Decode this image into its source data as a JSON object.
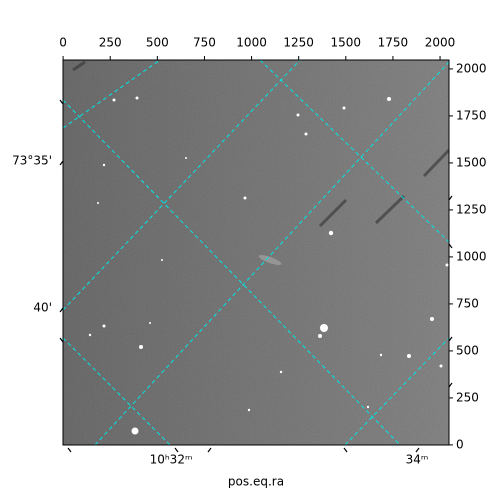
{
  "chart_data": {
    "type": "image",
    "xlabel": "pos.eq.ra",
    "xlim": [
      -0.5,
      2047.5
    ],
    "ylim": [
      -0.5,
      2047.5
    ],
    "xticks": [
      0,
      250,
      500,
      750,
      1000,
      1250,
      1500,
      1750,
      2000
    ],
    "yticks": [
      0,
      250,
      500,
      750,
      1000,
      1250,
      1500,
      1750,
      2000
    ],
    "ra_labels": [
      "10ʰ32ᵐ",
      "34ᵐ"
    ],
    "dec_labels": [
      "73°35'",
      "40'"
    ],
    "grid_color": "#00e5e5"
  }
}
